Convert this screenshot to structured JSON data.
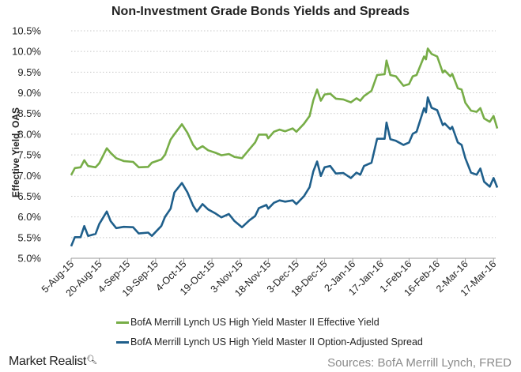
{
  "chart_data": {
    "type": "line",
    "title": "Non-Investment Grade Bonds Yields and Spreads",
    "ylabel": "Effective Yield, OAS",
    "xlabel": "",
    "ylim": [
      5.0,
      10.5
    ],
    "xlim": [
      "2015-08-05",
      "2016-03-19"
    ],
    "y_ticks": [
      "5.0%",
      "5.5%",
      "6.0%",
      "6.5%",
      "7.0%",
      "7.5%",
      "8.0%",
      "8.5%",
      "9.0%",
      "9.5%",
      "10.0%",
      "10.5%"
    ],
    "y_tick_values": [
      5.0,
      5.5,
      6.0,
      6.5,
      7.0,
      7.5,
      8.0,
      8.5,
      9.0,
      9.5,
      10.0,
      10.5
    ],
    "x_ticks": [
      "5-Aug-15",
      "20-Aug-15",
      "4-Sep-15",
      "19-Sep-15",
      "4-Oct-15",
      "19-Oct-15",
      "3-Nov-15",
      "18-Nov-15",
      "3-Dec-15",
      "18-Dec-15",
      "2-Jan-16",
      "17-Jan-16",
      "1-Feb-16",
      "16-Feb-16",
      "2-Mar-16",
      "17-Mar-16"
    ],
    "x_tick_dates": [
      "2015-08-05",
      "2015-08-20",
      "2015-09-04",
      "2015-09-19",
      "2015-10-04",
      "2015-10-19",
      "2015-11-03",
      "2015-11-18",
      "2015-12-03",
      "2015-12-18",
      "2016-01-02",
      "2016-01-17",
      "2016-02-01",
      "2016-02-16",
      "2016-03-02",
      "2016-03-17"
    ],
    "grid": "horizontal dotted",
    "legend_position": "bottom",
    "x": [
      "2015-08-05",
      "2015-08-07",
      "2015-08-10",
      "2015-08-12",
      "2015-08-14",
      "2015-08-18",
      "2015-08-20",
      "2015-08-24",
      "2015-08-26",
      "2015-08-29",
      "2015-09-02",
      "2015-09-07",
      "2015-09-10",
      "2015-09-15",
      "2015-09-17",
      "2015-09-22",
      "2015-09-24",
      "2015-09-27",
      "2015-09-29",
      "2015-10-03",
      "2015-10-06",
      "2015-10-09",
      "2015-10-11",
      "2015-10-14",
      "2015-10-17",
      "2015-10-21",
      "2015-10-24",
      "2015-10-28",
      "2015-10-31",
      "2015-11-04",
      "2015-11-08",
      "2015-11-11",
      "2015-11-13",
      "2015-11-17",
      "2015-11-18",
      "2015-11-21",
      "2015-11-24",
      "2015-11-27",
      "2015-12-01",
      "2015-12-03",
      "2015-12-07",
      "2015-12-10",
      "2015-12-12",
      "2015-12-14",
      "2015-12-16",
      "2015-12-18",
      "2015-12-21",
      "2015-12-24",
      "2015-12-28",
      "2016-01-01",
      "2016-01-04",
      "2016-01-06",
      "2016-01-08",
      "2016-01-12",
      "2016-01-15",
      "2016-01-19",
      "2016-01-20",
      "2016-01-22",
      "2016-01-25",
      "2016-01-29",
      "2016-02-01",
      "2016-02-03",
      "2016-02-05",
      "2016-02-09",
      "2016-02-10",
      "2016-02-11",
      "2016-02-13",
      "2016-02-16",
      "2016-02-19",
      "2016-02-20",
      "2016-02-23",
      "2016-02-24",
      "2016-02-27",
      "2016-02-29",
      "2016-03-02",
      "2016-03-05",
      "2016-03-08",
      "2016-03-10",
      "2016-03-12",
      "2016-03-15",
      "2016-03-17",
      "2016-03-19"
    ],
    "series": [
      {
        "name": "BofA Merrill Lynch US High Yield Master II Effective Yield",
        "color": "#77ad47",
        "values": [
          7.01,
          7.18,
          7.2,
          7.37,
          7.23,
          7.2,
          7.3,
          7.66,
          7.55,
          7.42,
          7.35,
          7.33,
          7.2,
          7.21,
          7.31,
          7.39,
          7.5,
          7.87,
          8.0,
          8.24,
          8.03,
          7.74,
          7.63,
          7.71,
          7.61,
          7.55,
          7.49,
          7.52,
          7.45,
          7.42,
          7.64,
          7.8,
          7.99,
          7.99,
          7.9,
          8.06,
          8.11,
          8.07,
          8.14,
          8.06,
          8.25,
          8.44,
          8.82,
          9.08,
          8.81,
          8.96,
          8.98,
          8.86,
          8.84,
          8.77,
          8.87,
          8.81,
          8.92,
          9.05,
          9.43,
          9.45,
          9.78,
          9.43,
          9.4,
          9.17,
          9.21,
          9.4,
          9.43,
          9.88,
          9.81,
          10.07,
          9.94,
          9.88,
          9.49,
          9.54,
          9.4,
          9.46,
          9.11,
          9.08,
          8.76,
          8.57,
          8.54,
          8.63,
          8.38,
          8.3,
          8.44,
          8.14
        ]
      },
      {
        "name": "BofA Merrill Lynch US High Yield Master II Option-Adjusted Spread",
        "color": "#1f5f8b",
        "values": [
          5.29,
          5.51,
          5.51,
          5.78,
          5.54,
          5.59,
          5.83,
          6.13,
          5.9,
          5.73,
          5.76,
          5.75,
          5.6,
          5.62,
          5.54,
          5.78,
          6.0,
          6.2,
          6.59,
          6.82,
          6.59,
          6.27,
          6.13,
          6.31,
          6.18,
          6.08,
          5.99,
          6.07,
          5.9,
          5.75,
          5.92,
          6.02,
          6.21,
          6.29,
          6.2,
          6.34,
          6.4,
          6.37,
          6.4,
          6.31,
          6.5,
          6.72,
          7.1,
          7.34,
          6.99,
          7.2,
          7.23,
          7.05,
          7.06,
          6.94,
          7.07,
          7.02,
          7.23,
          7.31,
          7.89,
          7.89,
          8.28,
          7.88,
          7.84,
          7.74,
          7.8,
          8.01,
          8.06,
          8.63,
          8.53,
          8.89,
          8.64,
          8.58,
          8.22,
          8.26,
          8.12,
          8.18,
          7.8,
          7.74,
          7.42,
          7.07,
          7.02,
          7.17,
          6.85,
          6.73,
          6.94,
          6.71
        ]
      }
    ]
  },
  "footer": {
    "brand": "Market Realist",
    "brand_icon": "magnifier-icon",
    "sources": "Sources: BofA Merrill Lynch, FRED"
  }
}
